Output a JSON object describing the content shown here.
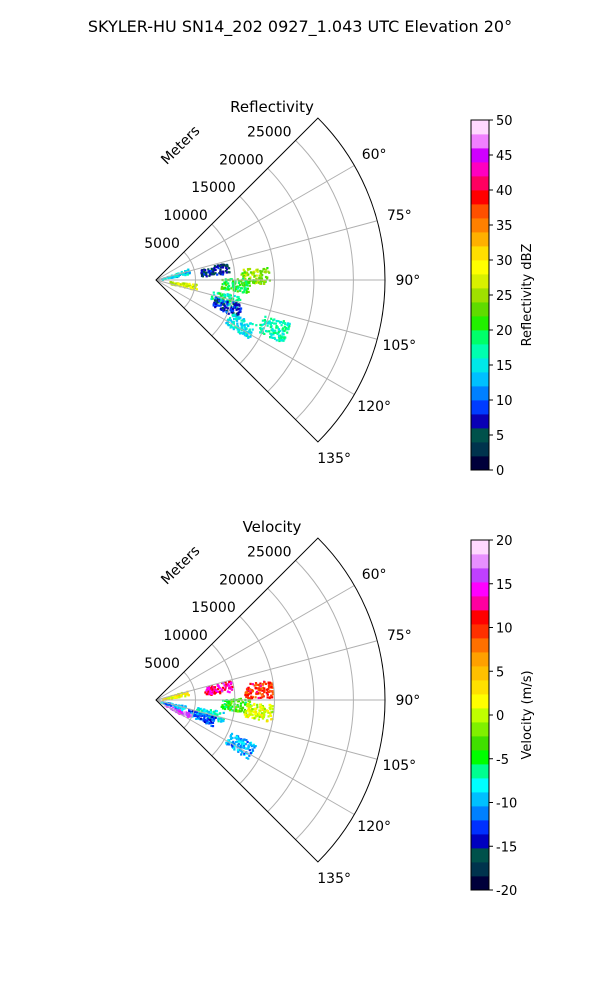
{
  "suptitle": "SKYLER-HU  SN14_202  0927_1.043 UTC Elevation 20°",
  "colormaps": {
    "reflectivity": [
      "#00003a",
      "#00334d",
      "#00514b",
      "#0a00b5",
      "#003cff",
      "#0080ff",
      "#00c0ff",
      "#00e8e8",
      "#00ffb0",
      "#00ff6a",
      "#22f000",
      "#60dc00",
      "#a0e000",
      "#d8f000",
      "#ffff00",
      "#ffdf00",
      "#ffb000",
      "#ff8000",
      "#ff5000",
      "#ff0000",
      "#ff0060",
      "#ff00c0",
      "#d000ff",
      "#f080ff",
      "#ffd8ff"
    ],
    "velocity": [
      "#00003a",
      "#00334d",
      "#00514b",
      "#0000c0",
      "#0030ff",
      "#0080ff",
      "#00c0ff",
      "#00ffff",
      "#00ff90",
      "#00ff00",
      "#40e000",
      "#80f000",
      "#c0ff00",
      "#ffff00",
      "#ffe000",
      "#ffc000",
      "#ffa000",
      "#ff7000",
      "#ff3000",
      "#ff0000",
      "#ff00a0",
      "#ff00ff",
      "#c040ff",
      "#e890ff",
      "#ffd8ff"
    ]
  },
  "chart_data": [
    {
      "type": "heatmap",
      "projection": "polar-sector",
      "title": "Reflectivity",
      "radial_label": "Meters",
      "r_ticks": [
        5000,
        10000,
        15000,
        20000,
        25000
      ],
      "r_tick_labels": [
        "5000",
        "10000",
        "15000",
        "20000",
        "25000"
      ],
      "r_max": 29000,
      "theta_range_deg": [
        45,
        135
      ],
      "theta_ticks": [
        "60°",
        "75°",
        "90°",
        "105°",
        "120°",
        "135°"
      ],
      "theta_tick_values": [
        60,
        75,
        90,
        105,
        120,
        135
      ],
      "colorbar": {
        "label": "Reflectivity dBZ",
        "min": 0,
        "max": 50,
        "ticks": [
          "0",
          "5",
          "10",
          "15",
          "20",
          "25",
          "30",
          "35",
          "40",
          "45",
          "50"
        ]
      },
      "grid": true,
      "echo_regions": [
        {
          "az": 87,
          "r": 12500,
          "value": 24
        },
        {
          "az": 93,
          "r": 10000,
          "value": 20
        },
        {
          "az": 99,
          "r": 3500,
          "value": 27
        },
        {
          "az": 105,
          "r": 9000,
          "value": 18
        },
        {
          "az": 80,
          "r": 7500,
          "value": 6
        },
        {
          "az": 110,
          "r": 9500,
          "value": 8
        },
        {
          "az": 118,
          "r": 12000,
          "value": 15
        },
        {
          "az": 74,
          "r": 2500,
          "value": 14
        },
        {
          "az": 112,
          "r": 16000,
          "value": 17
        }
      ]
    },
    {
      "type": "heatmap",
      "projection": "polar-sector",
      "title": "Velocity",
      "radial_label": "Meters",
      "r_ticks": [
        5000,
        10000,
        15000,
        20000,
        25000
      ],
      "r_tick_labels": [
        "5000",
        "10000",
        "15000",
        "20000",
        "25000"
      ],
      "r_max": 29000,
      "theta_range_deg": [
        45,
        135
      ],
      "theta_ticks": [
        "60°",
        "75°",
        "90°",
        "105°",
        "120°",
        "135°"
      ],
      "theta_tick_values": [
        60,
        75,
        90,
        105,
        120,
        135
      ],
      "colorbar": {
        "label": "Velocity (m/s)",
        "min": -20,
        "max": 20,
        "ticks": [
          "-20",
          "-15",
          "-10",
          "-5",
          "0",
          "5",
          "10",
          "15",
          "20"
        ]
      },
      "grid": true,
      "echo_regions": [
        {
          "az": 84,
          "r": 13000,
          "value": 10
        },
        {
          "az": 79,
          "r": 8000,
          "value": 13
        },
        {
          "az": 93,
          "r": 10000,
          "value": -4
        },
        {
          "az": 96,
          "r": 13000,
          "value": 1
        },
        {
          "az": 104,
          "r": 7000,
          "value": -8
        },
        {
          "az": 110,
          "r": 6000,
          "value": -12
        },
        {
          "az": 115,
          "r": 3000,
          "value": 16
        },
        {
          "az": 105,
          "r": 2000,
          "value": -10
        },
        {
          "az": 118,
          "r": 12000,
          "value": -10
        },
        {
          "az": 76,
          "r": 2500,
          "value": 2
        }
      ]
    }
  ]
}
